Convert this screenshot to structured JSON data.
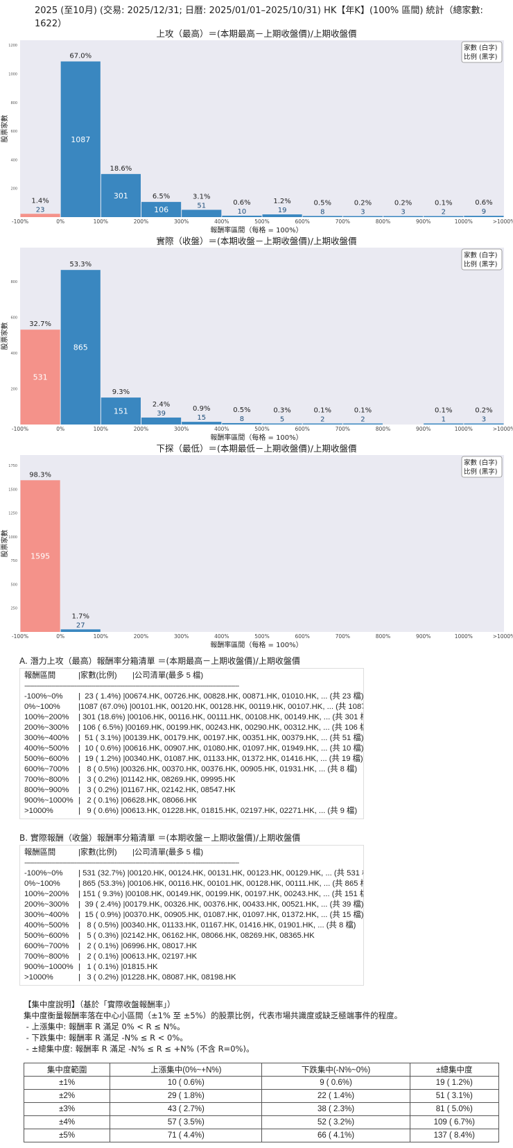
{
  "title": "2025 (至10月) (交易: 2025/12/31; 日曆: 2025/01/01–2025/10/31) HK【年K】(100% 區間) 統計（總家數: 1622）",
  "colors": {
    "negative_bar": "#f4928a",
    "positive_bar": "#3a87c0",
    "plot_bg": "#eaeaf2"
  },
  "chart_data": [
    {
      "type": "bar",
      "title": "上攻（最高）＝(本期最高－上期收盤價)/上期收盤價",
      "xlabel": "報酬率區間（每格 = 100%）",
      "ylabel": "股票家數",
      "x_ticks": [
        "-100%",
        "0%",
        "100%",
        "200%",
        "300%",
        "400%",
        "500%",
        "600%",
        "700%",
        "800%",
        "900%",
        "1000%",
        ">1000%"
      ],
      "y_ticks": [
        200,
        400,
        600,
        800,
        1000,
        1200
      ],
      "ylim": [
        0,
        1235
      ],
      "legend": [
        "家數 (白字)",
        "比例 (黑字)"
      ],
      "legend_position": "top-right",
      "grid": false,
      "values": [
        23,
        1087,
        301,
        106,
        51,
        10,
        19,
        8,
        3,
        3,
        2,
        9
      ],
      "percent_labels": [
        "1.4%",
        "67.0%",
        "18.6%",
        "6.5%",
        "3.1%",
        "0.6%",
        "1.2%",
        "0.5%",
        "0.2%",
        "0.2%",
        "0.1%",
        "0.6%"
      ]
    },
    {
      "type": "bar",
      "title": "實際（收盤）＝(本期收盤－上期收盤價)/上期收盤價",
      "xlabel": "報酬率區間（每格 = 100%）",
      "ylabel": "股票家數",
      "x_ticks": [
        "-100%",
        "0%",
        "100%",
        "200%",
        "300%",
        "400%",
        "500%",
        "600%",
        "700%",
        "800%",
        "900%",
        "1000%",
        ">1000%"
      ],
      "y_ticks": [
        200,
        400,
        600,
        800
      ],
      "ylim": [
        0,
        990
      ],
      "legend": [
        "家數 (白字)",
        "比例 (黑字)"
      ],
      "legend_position": "top-right",
      "grid": false,
      "values": [
        531,
        865,
        151,
        39,
        15,
        8,
        5,
        2,
        2,
        0,
        1,
        3
      ],
      "percent_labels": [
        "32.7%",
        "53.3%",
        "9.3%",
        "2.4%",
        "0.9%",
        "0.5%",
        "0.3%",
        "0.1%",
        "0.1%",
        "",
        "0.1%",
        "0.2%"
      ]
    },
    {
      "type": "bar",
      "title": "下探（最低）＝(本期最低－上期收盤價)/上期收盤價",
      "xlabel": "報酬率區間（每格 = 100%）",
      "ylabel": "股票家數",
      "x_ticks": [
        "-100%",
        "0%",
        "100%",
        "200%",
        "300%",
        "400%",
        "500%",
        "600%",
        "700%",
        "800%",
        "900%",
        "1000%",
        ">1000%"
      ],
      "y_ticks": [
        250,
        500,
        750,
        1000,
        1250,
        1500,
        1750
      ],
      "ylim": [
        0,
        1860
      ],
      "legend": [
        "家數 (白字)",
        "比例 (黑字)"
      ],
      "legend_position": "top-right",
      "grid": false,
      "values": [
        1595,
        27,
        0,
        0,
        0,
        0,
        0,
        0,
        0,
        0,
        0,
        0
      ],
      "percent_labels": [
        "98.3%",
        "1.7%",
        "",
        "",
        "",
        "",
        "",
        "",
        "",
        "",
        "",
        ""
      ]
    }
  ],
  "list_a": {
    "title": "A. 潛力上攻（最高）報酬率分箱清單 ＝(本期最高－上期收盤價)/上期收盤價",
    "header": [
      "報酬區間",
      "|家數(比例)",
      "|公司清單(最多 5 檔)"
    ],
    "dashes": "----------------------------------------------------------------------------------------------------------------",
    "rows": [
      {
        "range": "-100%~0%",
        "count": "|  23 ( 1.4%) |",
        "companies": "00674.HK, 00726.HK, 00828.HK, 00871.HK, 01010.HK, ... (共 23 檔)"
      },
      {
        "range": "0%~100%",
        "count": "|1087 (67.0%) |",
        "companies": "00101.HK, 00120.HK, 00128.HK, 00119.HK, 00107.HK, ... (共 1087 檔)"
      },
      {
        "range": "100%~200%",
        "count": "| 301 (18.6%) |",
        "companies": "00106.HK, 00116.HK, 00111.HK, 00108.HK, 00149.HK, ... (共 301 檔)"
      },
      {
        "range": "200%~300%",
        "count": "| 106 ( 6.5%) |",
        "companies": "00169.HK, 00199.HK, 00243.HK, 00290.HK, 00312.HK, ... (共 106 檔)"
      },
      {
        "range": "300%~400%",
        "count": "|  51 ( 3.1%) |",
        "companies": "00139.HK, 00179.HK, 00197.HK, 00351.HK, 00379.HK, ... (共 51 檔)"
      },
      {
        "range": "400%~500%",
        "count": "|  10 ( 0.6%) |",
        "companies": "00616.HK, 00907.HK, 01080.HK, 01097.HK, 01949.HK, ... (共 10 檔)"
      },
      {
        "range": "500%~600%",
        "count": "|  19 ( 1.2%) |",
        "companies": "00340.HK, 01087.HK, 01133.HK, 01372.HK, 01416.HK, ... (共 19 檔)"
      },
      {
        "range": "600%~700%",
        "count": "|   8 ( 0.5%) |",
        "companies": "00326.HK, 00370.HK, 00376.HK, 00905.HK, 01931.HK, ... (共 8 檔)"
      },
      {
        "range": "700%~800%",
        "count": "|   3 ( 0.2%) |",
        "companies": "01142.HK, 08269.HK, 09995.HK"
      },
      {
        "range": "800%~900%",
        "count": "|   3 ( 0.2%) |",
        "companies": "01167.HK, 02142.HK, 08547.HK"
      },
      {
        "range": "900%~1000%",
        "count": "|   2 ( 0.1%) |",
        "companies": "06628.HK, 08066.HK"
      },
      {
        "range": ">1000%",
        "count": "|   9 ( 0.6%) |",
        "companies": "00613.HK, 01228.HK, 01815.HK, 02197.HK, 02271.HK, ... (共 9 檔)"
      }
    ]
  },
  "list_b": {
    "title": "B. 實際報酬（收盤）報酬率分箱清單 ＝(本期收盤－上期收盤價)/上期收盤價",
    "header": [
      "報酬區間",
      "|家數(比例)",
      "|公司清單(最多 5 檔)"
    ],
    "dashes": "----------------------------------------------------------------------------------------------------------------",
    "rows": [
      {
        "range": "-100%~0%",
        "count": "| 531 (32.7%) |",
        "companies": "00120.HK, 00124.HK, 00131.HK, 00123.HK, 00129.HK, ... (共 531 檔)"
      },
      {
        "range": "0%~100%",
        "count": "| 865 (53.3%) |",
        "companies": "00106.HK, 00116.HK, 00101.HK, 00128.HK, 00111.HK, ... (共 865 檔)"
      },
      {
        "range": "100%~200%",
        "count": "| 151 ( 9.3%) |",
        "companies": "00108.HK, 00149.HK, 00199.HK, 00197.HK, 00243.HK, ... (共 151 檔)"
      },
      {
        "range": "200%~300%",
        "count": "|  39 ( 2.4%) |",
        "companies": "00179.HK, 00326.HK, 00376.HK, 00433.HK, 00521.HK, ... (共 39 檔)"
      },
      {
        "range": "300%~400%",
        "count": "|  15 ( 0.9%) |",
        "companies": "00370.HK, 00905.HK, 01087.HK, 01097.HK, 01372.HK, ... (共 15 檔)"
      },
      {
        "range": "400%~500%",
        "count": "|   8 ( 0.5%) |",
        "companies": "00340.HK, 01133.HK, 01167.HK, 01416.HK, 01901.HK, ... (共 8 檔)"
      },
      {
        "range": "500%~600%",
        "count": "|   5 ( 0.3%) |",
        "companies": "02142.HK, 06162.HK, 08066.HK, 08269.HK, 08365.HK"
      },
      {
        "range": "600%~700%",
        "count": "|   2 ( 0.1%) |",
        "companies": "06996.HK, 08017.HK"
      },
      {
        "range": "700%~800%",
        "count": "|   2 ( 0.1%) |",
        "companies": "00613.HK, 02197.HK"
      },
      {
        "range": "900%~1000%",
        "count": "|   1 ( 0.1%) |",
        "companies": "01815.HK"
      },
      {
        "range": ">1000%",
        "count": "|   3 ( 0.2%) |",
        "companies": "01228.HK, 08087.HK, 08198.HK"
      }
    ]
  },
  "concentration": {
    "lines": [
      "【集中度說明】（基於「實際收盤報酬率」）",
      "集中度衡量報酬率落在中心小區間（±1% 至 ±5%）的股票比例，代表市場共識度或缺乏極端事件的程度。",
      " - 上漲集中: 報酬率 R 滿足 0% < R ≤ N%。",
      " - 下跌集中: 報酬率 R 滿足 -N% ≤ R < 0%。",
      " - ±總集中度: 報酬率 R 滿足 -N% ≤ R ≤ +N% (不含 R=0%)。"
    ],
    "table": {
      "headers": [
        "集中度範圍",
        "上漲集中(0%~+N%)",
        "下跌集中(-N%~0%)",
        "±總集中度"
      ],
      "rows": [
        [
          "±1%",
          "10 ( 0.6%)",
          "9 ( 0.6%)",
          "19 ( 1.2%)"
        ],
        [
          "±2%",
          "29 ( 1.8%)",
          "22 ( 1.4%)",
          "51 ( 3.1%)"
        ],
        [
          "±3%",
          "43 ( 2.7%)",
          "38 ( 2.3%)",
          "81 ( 5.0%)"
        ],
        [
          "±4%",
          "57 ( 3.5%)",
          "52 ( 3.2%)",
          "109 ( 6.7%)"
        ],
        [
          "±5%",
          "71 ( 4.4%)",
          "66 ( 4.1%)",
          "137 ( 8.4%)"
        ]
      ]
    }
  }
}
